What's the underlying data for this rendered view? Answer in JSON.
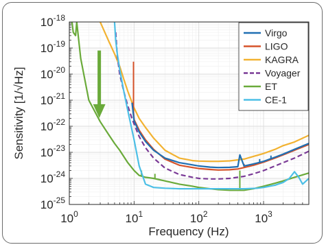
{
  "chart_data": {
    "type": "line",
    "xlabel": "Frequency (Hz)",
    "ylabel": "Sensitivity [1/√Hz]",
    "xscale": "log",
    "yscale": "log",
    "xlim": [
      1,
      5000
    ],
    "ylim": [
      1e-25,
      1e-18
    ],
    "grid": true,
    "legend_position": "top-right",
    "x_ticks": [
      {
        "value": 1,
        "base": "10",
        "exp": "0"
      },
      {
        "value": 10,
        "base": "10",
        "exp": "1"
      },
      {
        "value": 100,
        "base": "10",
        "exp": "2"
      },
      {
        "value": 1000,
        "base": "10",
        "exp": "3"
      }
    ],
    "y_ticks": [
      {
        "value": 1e-18,
        "base": "10",
        "exp": "-18"
      },
      {
        "value": 1e-19,
        "base": "10",
        "exp": "-19"
      },
      {
        "value": 1e-20,
        "base": "10",
        "exp": "-20"
      },
      {
        "value": 1e-21,
        "base": "10",
        "exp": "-21"
      },
      {
        "value": 1e-22,
        "base": "10",
        "exp": "-22"
      },
      {
        "value": 1e-23,
        "base": "10",
        "exp": "-23"
      },
      {
        "value": 1e-24,
        "base": "10",
        "exp": "-24"
      },
      {
        "value": 1e-25,
        "base": "10",
        "exp": "-25"
      }
    ],
    "series": [
      {
        "name": "Virgo",
        "color": "#1f6fb2",
        "dash": "solid",
        "x": [
          9.3,
          10,
          12,
          15,
          20,
          30,
          50,
          80,
          100,
          150,
          200,
          300,
          400,
          430,
          500,
          700,
          1000,
          1500,
          2000,
          3000,
          5000
        ],
        "y": [
          8e-22,
          1.6e-22,
          6e-23,
          2.6e-23,
          1.2e-23,
          6e-24,
          4e-24,
          3.3e-24,
          3e-24,
          2.7e-24,
          2.6e-24,
          2.65e-24,
          2.8e-24,
          8e-24,
          3e-24,
          3.6e-24,
          4.5e-24,
          6.5e-24,
          8.5e-24,
          1.3e-23,
          2.2e-23
        ],
        "spikes": [
          {
            "x": 430,
            "peak": 8e-24
          },
          {
            "x": 870,
            "peak": 5.5e-24
          },
          {
            "x": 1300,
            "peak": 7.5e-24
          }
        ]
      },
      {
        "name": "LIGO",
        "color": "#d6532a",
        "dash": "solid",
        "x": [
          9.5,
          10,
          12,
          15,
          20,
          30,
          50,
          80,
          100,
          150,
          200,
          300,
          400,
          500,
          700,
          1000,
          1500,
          2000,
          3000,
          5000
        ],
        "y": [
          8e-22,
          1.8e-22,
          7e-23,
          3e-23,
          1.3e-23,
          5.5e-24,
          3.2e-24,
          2.6e-24,
          2.4e-24,
          2.2e-24,
          2.1e-24,
          2.15e-24,
          2.3e-24,
          2.6e-24,
          3.2e-24,
          4.2e-24,
          6e-24,
          8e-24,
          1.2e-23,
          2e-23
        ],
        "spikes": [
          {
            "x": 9.8,
            "peak": 3e-20
          },
          {
            "x": 500,
            "peak": 3.6e-24
          }
        ]
      },
      {
        "name": "KAGRA",
        "color": "#f2b231",
        "dash": "solid",
        "x": [
          3,
          4,
          5,
          6,
          7,
          8,
          10,
          12,
          15,
          20,
          30,
          50,
          80,
          100,
          150,
          200,
          300,
          500,
          700,
          1000,
          1500,
          2000,
          3000,
          5000
        ],
        "y": [
          1e-18,
          2e-19,
          6e-20,
          2e-20,
          6e-21,
          2.2e-21,
          5e-22,
          2e-22,
          9e-23,
          3.5e-23,
          1.2e-23,
          6e-24,
          4.8e-24,
          4.6e-24,
          4.5e-24,
          4.5e-24,
          4.7e-24,
          5.5e-24,
          7e-24,
          9e-24,
          1.3e-23,
          1.8e-23,
          2.5e-23,
          4.5e-23
        ]
      },
      {
        "name": "Voyager",
        "color": "#7a3a96",
        "dash": "dashed",
        "x": [
          5.2,
          5.5,
          6,
          7,
          8,
          9,
          10,
          12,
          15,
          20,
          30,
          50,
          80,
          100,
          150,
          200,
          300,
          500,
          700,
          1000,
          1500,
          2000,
          3000,
          5000
        ],
        "y": [
          4e-19,
          5e-20,
          1e-20,
          2e-21,
          6e-22,
          2.5e-22,
          1.2e-22,
          4e-23,
          1.5e-23,
          6e-24,
          2.5e-24,
          1.4e-24,
          1.1e-24,
          1e-24,
          9.5e-25,
          9.5e-25,
          1e-24,
          1.2e-24,
          1.5e-24,
          2e-24,
          3e-24,
          4e-24,
          6e-24,
          1.1e-23
        ]
      },
      {
        "name": "ET",
        "color": "#6aaa3a",
        "dash": "solid",
        "x": [
          1.1,
          1.15,
          1.25,
          1.3,
          1.5,
          2,
          3,
          4,
          5,
          6,
          8,
          10,
          12,
          15,
          20,
          30,
          50,
          80,
          100,
          150,
          200,
          300,
          500,
          700,
          1000,
          1500,
          2000,
          3000,
          5000
        ],
        "y": [
          1e-18,
          4e-19,
          3e-19,
          1e-18,
          4e-20,
          1e-21,
          1.5e-22,
          5e-23,
          2.2e-23,
          1.2e-23,
          4e-24,
          2e-24,
          1.3e-24,
          1.1e-24,
          1e-24,
          8e-25,
          6e-25,
          5e-25,
          4.5e-25,
          4e-25,
          3.7e-25,
          3.5e-25,
          3.5e-25,
          4e-25,
          5e-25,
          6.5e-25,
          8e-25,
          1.1e-24,
          1.6e-24
        ],
        "spikes": [
          {
            "x": 13,
            "peak": 2e-24
          },
          {
            "x": 21,
            "peak": 1.5e-24
          },
          {
            "x": 430,
            "peak": 2e-24
          }
        ]
      },
      {
        "name": "CE-1",
        "color": "#4cbfe6",
        "dash": "solid",
        "x": [
          5,
          5.2,
          5.5,
          6,
          7,
          8,
          10,
          12,
          15,
          20,
          30,
          50,
          100,
          200,
          300,
          500,
          800,
          1000,
          1500,
          2000,
          2500,
          3000,
          3500,
          4000,
          5000
        ],
        "y": [
          1e-18,
          2e-19,
          6e-20,
          1.5e-20,
          2e-21,
          4e-22,
          3e-23,
          3e-24,
          6e-25,
          4.5e-25,
          4.2e-25,
          4e-25,
          4e-25,
          4e-25,
          4e-25,
          4e-25,
          4.2e-25,
          4.5e-25,
          5.5e-25,
          7e-25,
          1e-24,
          1.8e-24,
          1.1e-24,
          6e-25,
          1e-24
        ]
      }
    ]
  }
}
